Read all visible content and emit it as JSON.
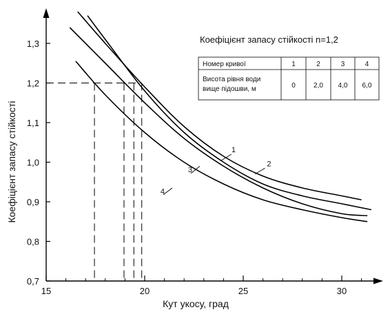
{
  "chart_data": {
    "type": "line",
    "xlabel": "Кут укосу, град",
    "ylabel": "Коефіцієнт запасу стійкості",
    "xlim": [
      15,
      32
    ],
    "ylim": [
      0.7,
      1.38
    ],
    "x_ticks": [
      15,
      20,
      25,
      30
    ],
    "x_tick_labels": [
      "15",
      "20",
      "25",
      "30"
    ],
    "y_ticks": [
      0.7,
      0.8,
      0.9,
      1.0,
      1.1,
      1.2,
      1.3
    ],
    "y_tick_labels": [
      "0,7",
      "0,8",
      "0,9",
      "1,0",
      "1,1",
      "1,2",
      "1,3"
    ],
    "grid": false,
    "series": [
      {
        "name": "1",
        "x": [
          16.6,
          18,
          20,
          22,
          24,
          26,
          28,
          30,
          31
        ],
        "y": [
          1.38,
          1.3,
          1.19,
          1.09,
          1.015,
          0.965,
          0.935,
          0.915,
          0.905
        ]
      },
      {
        "name": "2",
        "x": [
          17.1,
          18,
          20,
          22,
          24,
          26,
          28,
          30,
          31.5
        ],
        "y": [
          1.37,
          1.31,
          1.18,
          1.075,
          1.0,
          0.945,
          0.915,
          0.895,
          0.88
        ]
      },
      {
        "name": "3",
        "x": [
          16.2,
          18,
          20,
          22,
          24,
          26,
          28,
          30,
          31.3
        ],
        "y": [
          1.34,
          1.25,
          1.15,
          1.06,
          0.99,
          0.935,
          0.895,
          0.87,
          0.865
        ]
      },
      {
        "name": "4",
        "x": [
          16.5,
          18,
          20,
          22,
          24,
          26,
          28,
          30,
          31.3
        ],
        "y": [
          1.255,
          1.17,
          1.075,
          1.0,
          0.945,
          0.905,
          0.88,
          0.86,
          0.85
        ]
      }
    ],
    "reference_line": {
      "y": 1.2,
      "x_intersections": [
        17.45,
        18.95,
        19.45,
        19.85
      ]
    },
    "curve_labels": [
      {
        "text": "1",
        "x": 24.4,
        "y": 1.025
      },
      {
        "text": "2",
        "x": 26.2,
        "y": 0.99
      },
      {
        "text": "3",
        "x": 22.2,
        "y": 0.975
      },
      {
        "text": "4",
        "x": 20.8,
        "y": 0.92
      }
    ],
    "table": {
      "title": "Коефіцієнт запасу стійкості n=1,2",
      "row1_header": "Номер кривої",
      "row1_values": [
        "1",
        "2",
        "3",
        "4"
      ],
      "row2_header_line1": "Висота рівня води",
      "row2_header_line2": "вище підошви, м",
      "row2_values": [
        "0",
        "2,0",
        "4,0",
        "6,0"
      ]
    }
  }
}
